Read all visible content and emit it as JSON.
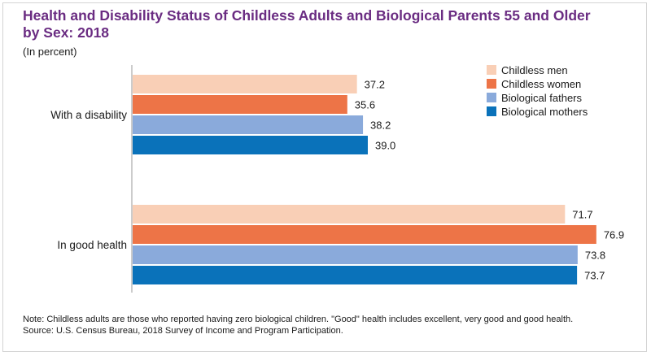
{
  "title_line1": "Health and Disability Status of Childless Adults and Biological Parents 55 and Older",
  "title_line2": "by Sex: 2018",
  "unit": "(In percent)",
  "note_line1": "Note: Childless adults are those who reported having zero biological children. \"Good\" health includes excellent, very good and good health.",
  "note_line2": "Source: U.S. Census Bureau, 2018 Survey of Income and Program Participation.",
  "colors": {
    "title": "#6a2c82",
    "childless_men": "#f9cfb6",
    "childless_women": "#ed7447",
    "biological_fathers": "#8aaadb",
    "biological_mothers": "#0a72ba"
  },
  "chart_data": {
    "type": "bar",
    "orientation": "horizontal",
    "categories": [
      "With a disability",
      "In good health"
    ],
    "series": [
      {
        "name": "Childless men",
        "values": [
          37.2,
          71.7
        ],
        "color": "#f9cfb6"
      },
      {
        "name": "Childless women",
        "values": [
          35.6,
          76.9
        ],
        "color": "#ed7447"
      },
      {
        "name": "Biological fathers",
        "values": [
          38.2,
          73.8
        ],
        "color": "#8aaadb"
      },
      {
        "name": "Biological mothers",
        "values": [
          39.0,
          73.7
        ],
        "color": "#0a72ba"
      }
    ],
    "xlim": [
      0,
      80
    ],
    "legend": "top-right",
    "grid": false,
    "data_labels": true
  }
}
